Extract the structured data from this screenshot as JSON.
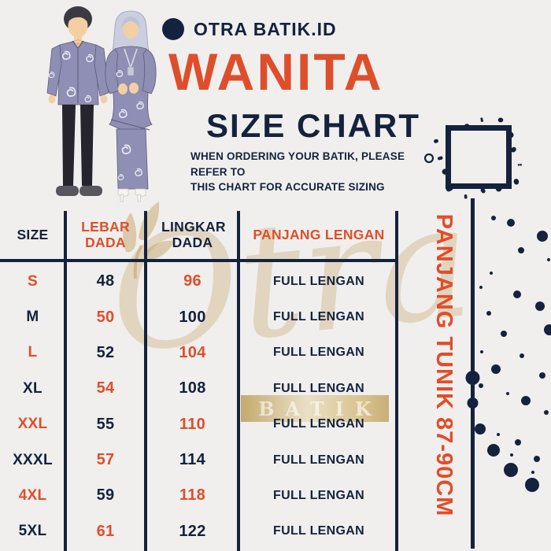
{
  "brand": {
    "name": "OTRA BATIK.ID"
  },
  "header": {
    "title": "WANITA",
    "subtitle": "SIZE CHART",
    "note_line1": "WHEN ORDERING YOUR BATIK, PLEASE REFER TO",
    "note_line2": "THIS CHART FOR ACCURATE SIZING"
  },
  "table": {
    "columns": [
      "SIZE",
      "LEBAR DADA",
      "LINGKAR DADA",
      "PANJANG LENGAN"
    ],
    "rows": [
      {
        "size": "S",
        "lebar_dada": "48",
        "lingkar_dada": "96",
        "panjang_lengan": "FULL LENGAN"
      },
      {
        "size": "M",
        "lebar_dada": "50",
        "lingkar_dada": "100",
        "panjang_lengan": "FULL LENGAN"
      },
      {
        "size": "L",
        "lebar_dada": "52",
        "lingkar_dada": "104",
        "panjang_lengan": "FULL LENGAN"
      },
      {
        "size": "XL",
        "lebar_dada": "54",
        "lingkar_dada": "108",
        "panjang_lengan": "FULL LENGAN"
      },
      {
        "size": "XXL",
        "lebar_dada": "55",
        "lingkar_dada": "110",
        "panjang_lengan": "FULL LENGAN"
      },
      {
        "size": "XXXL",
        "lebar_dada": "57",
        "lingkar_dada": "114",
        "panjang_lengan": "FULL LENGAN"
      },
      {
        "size": "4XL",
        "lebar_dada": "59",
        "lingkar_dada": "118",
        "panjang_lengan": "FULL LENGAN"
      },
      {
        "size": "5XL",
        "lebar_dada": "61",
        "lingkar_dada": "122",
        "panjang_lengan": "FULL LENGAN"
      }
    ]
  },
  "side_note": "PANJANG TUNIK 87-90CM",
  "watermark": {
    "script": "Otra",
    "band_text": "BATIK"
  },
  "colors": {
    "navy": "#15223D",
    "orange": "#DF4E2B",
    "background": "#F0EFED",
    "gold": "#C9A96B"
  }
}
